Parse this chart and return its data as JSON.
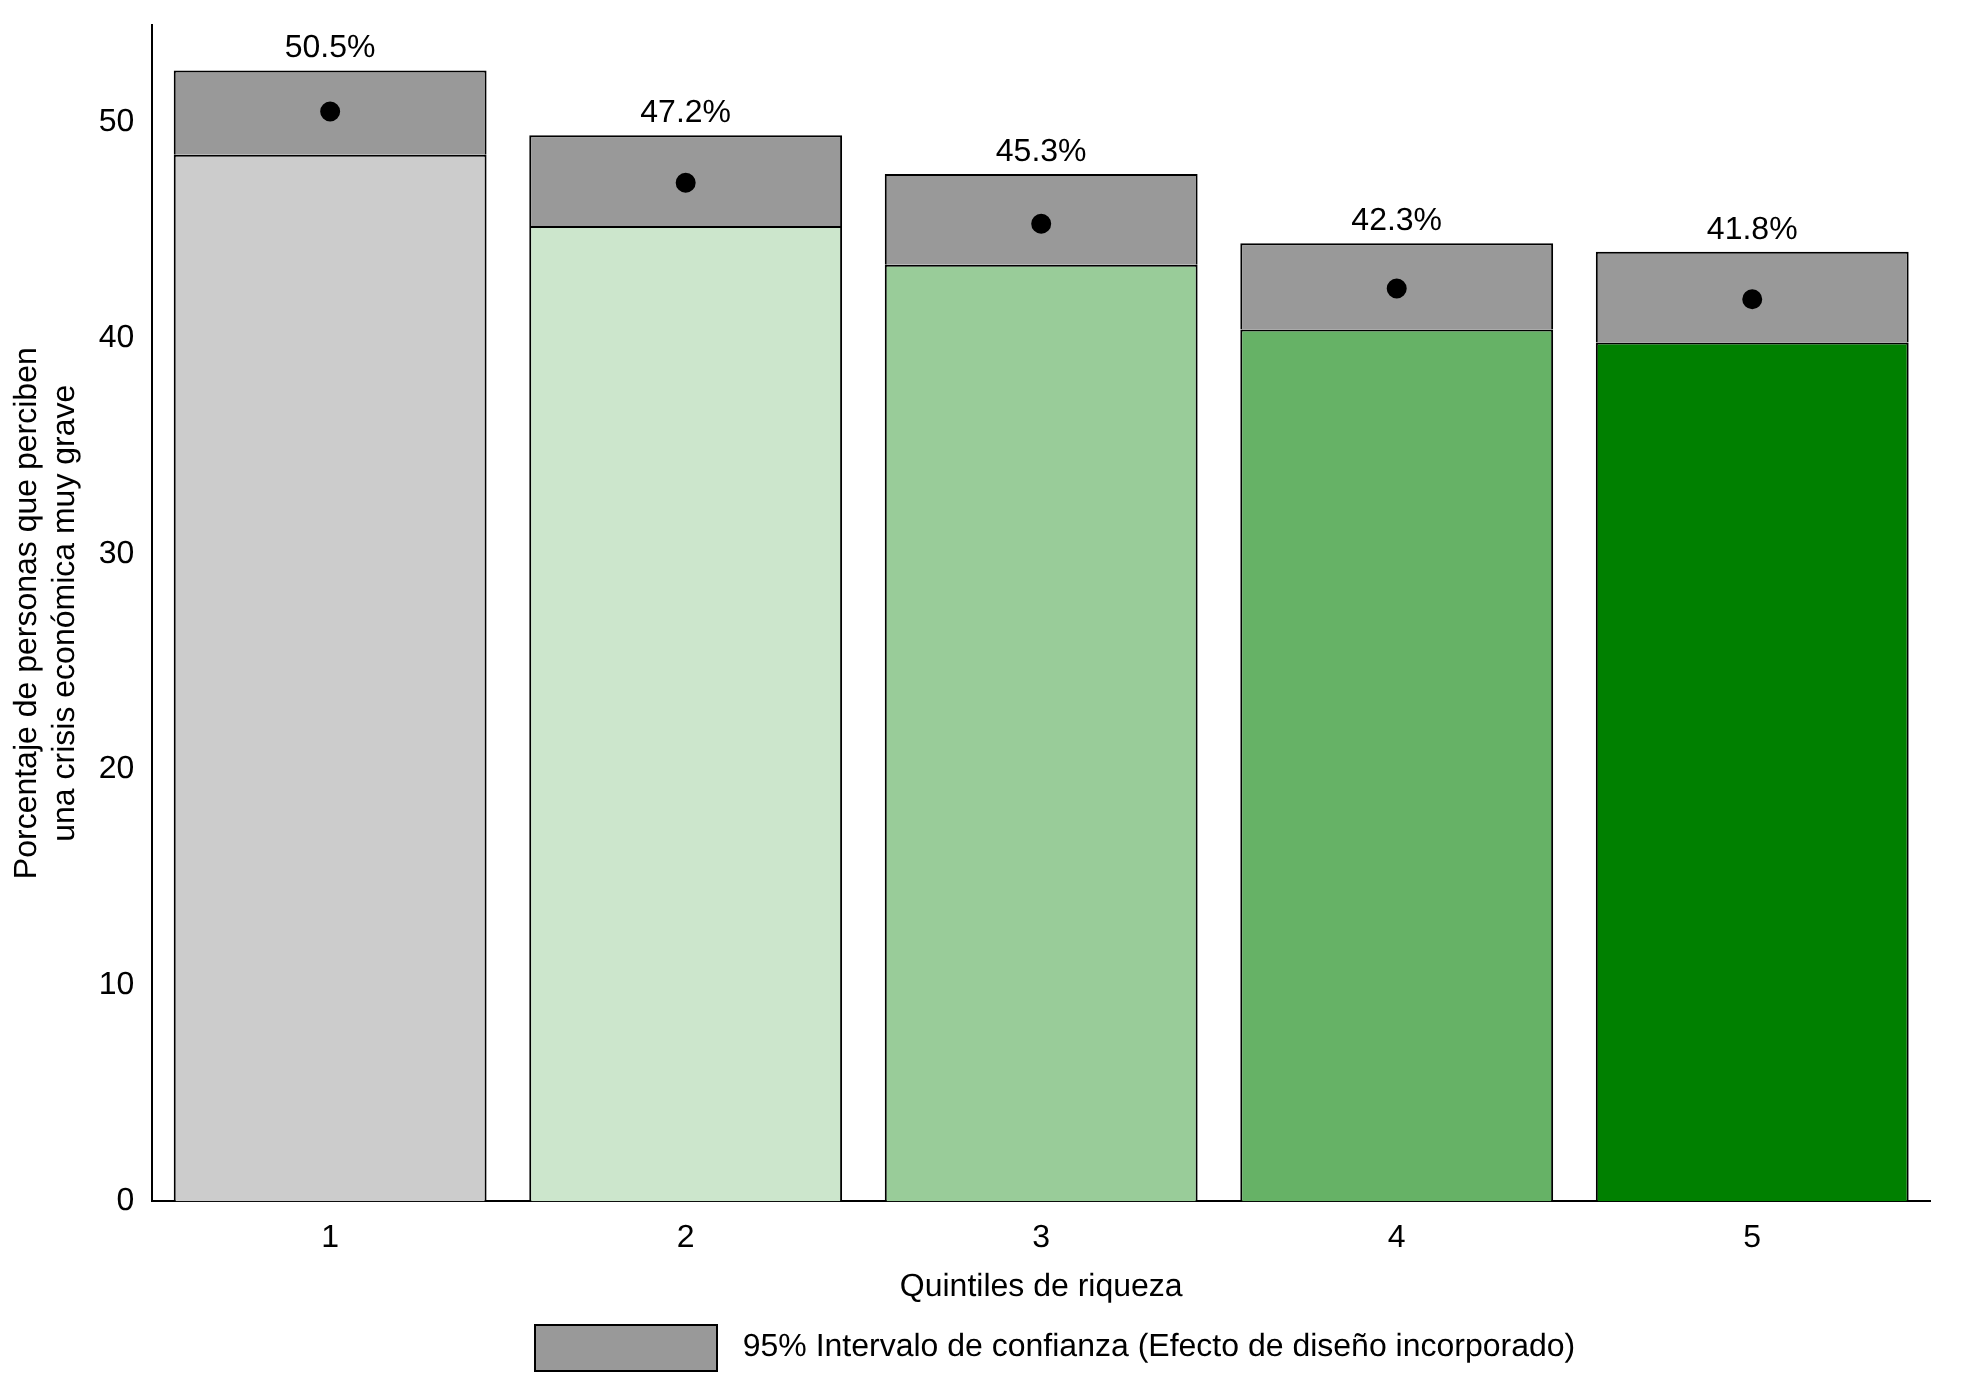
{
  "chart_data": {
    "type": "bar",
    "stacked": true,
    "xlabel": "Quintiles de riqueza",
    "ylabel": "Porcentaje de personas que perciben\nuna crisis económica muy grave",
    "categories": [
      "1",
      "2",
      "3",
      "4",
      "5"
    ],
    "series": [
      {
        "colors": [
          "#cccccc",
          "#cce6cc",
          "#99cc99",
          "#66b266",
          "#008000"
        ],
        "values": [
          48.5,
          45.2,
          43.4,
          40.4,
          39.8
        ]
      },
      {
        "name": "95% Intervalo de confianza (Efecto de diseño incorporado)",
        "color": "#999999",
        "values": [
          3.9,
          4.2,
          4.2,
          4.0,
          4.2
        ]
      },
      {
        "type": "scatter",
        "x": [
          "1",
          "2",
          "3",
          "4",
          "5"
        ],
        "color": "#000000",
        "values": [
          50.5,
          47.2,
          45.3,
          42.3,
          41.8
        ],
        "value_labels": [
          "50.5%",
          "47.2%",
          "45.3%",
          "42.3%",
          "41.8%"
        ]
      }
    ],
    "ylim": [
      0,
      54.5
    ],
    "yticks": [
      0,
      10,
      20,
      30,
      40,
      50
    ],
    "marker": "circle",
    "grid": false,
    "legend": "bottom"
  }
}
